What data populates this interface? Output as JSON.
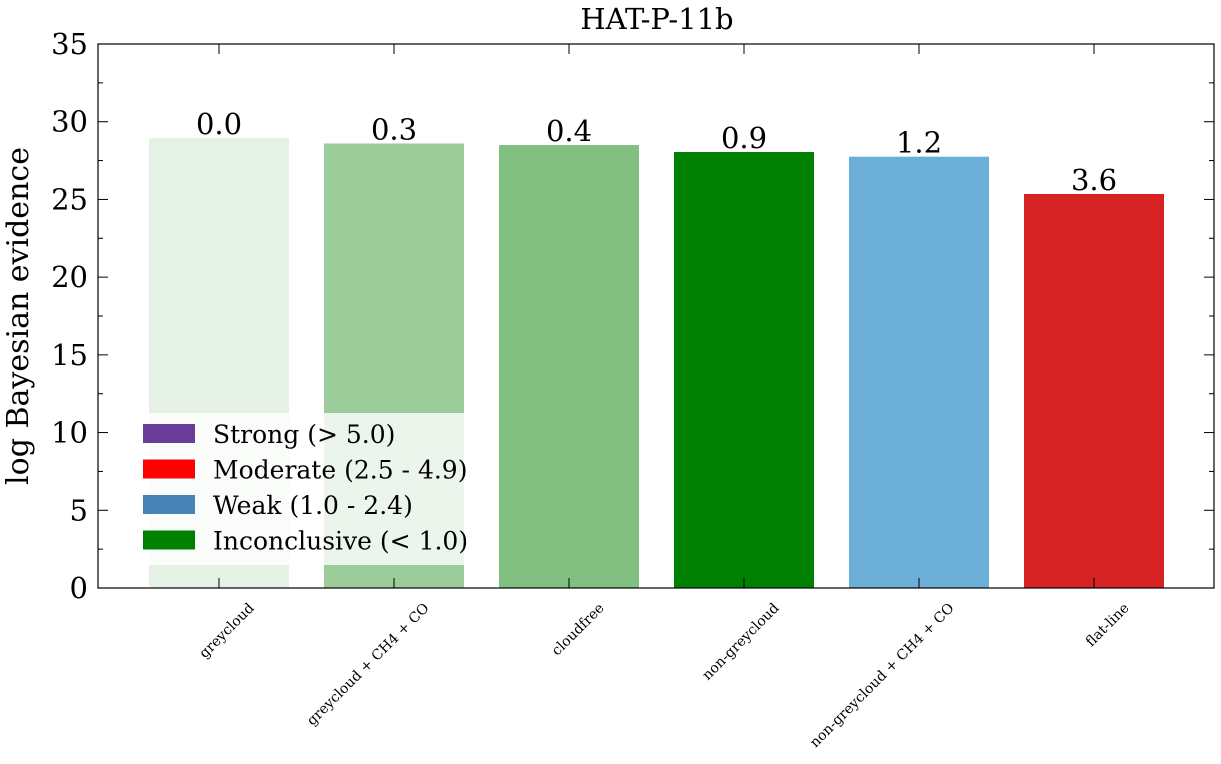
{
  "chart_data": {
    "type": "bar",
    "title": "HAT-P-11b",
    "xlabel": "",
    "ylabel": "log Bayesian evidence",
    "ylim": [
      0,
      35
    ],
    "yticks": [
      0,
      5,
      10,
      15,
      20,
      25,
      30,
      35
    ],
    "grid": false,
    "categories": [
      "greycloud",
      "greycloud + CH4 + CO",
      "cloudfree",
      "non-greycloud",
      "non-greycloud + CH4 + CO",
      "flat-line"
    ],
    "values": [
      28.95,
      28.6,
      28.5,
      28.05,
      27.75,
      25.35
    ],
    "bar_labels": [
      "0.0",
      "0.3",
      "0.4",
      "0.9",
      "1.2",
      "3.6"
    ],
    "bar_colors": [
      "#e5f1e5",
      "#9ccc9a",
      "#82c082",
      "#008000",
      "#6baed6",
      "#d62222"
    ],
    "legend": {
      "placement": "lower-left",
      "entries": [
        {
          "label": "Strong (> 5.0)",
          "color": "#6a3d9a"
        },
        {
          "label": "Moderate (2.5 - 4.9)",
          "color": "#ff0000"
        },
        {
          "label": "Weak (1.0 - 2.4)",
          "color": "#4682b4"
        },
        {
          "label": "Inconclusive (< 1.0)",
          "color": "#008000"
        }
      ]
    }
  }
}
